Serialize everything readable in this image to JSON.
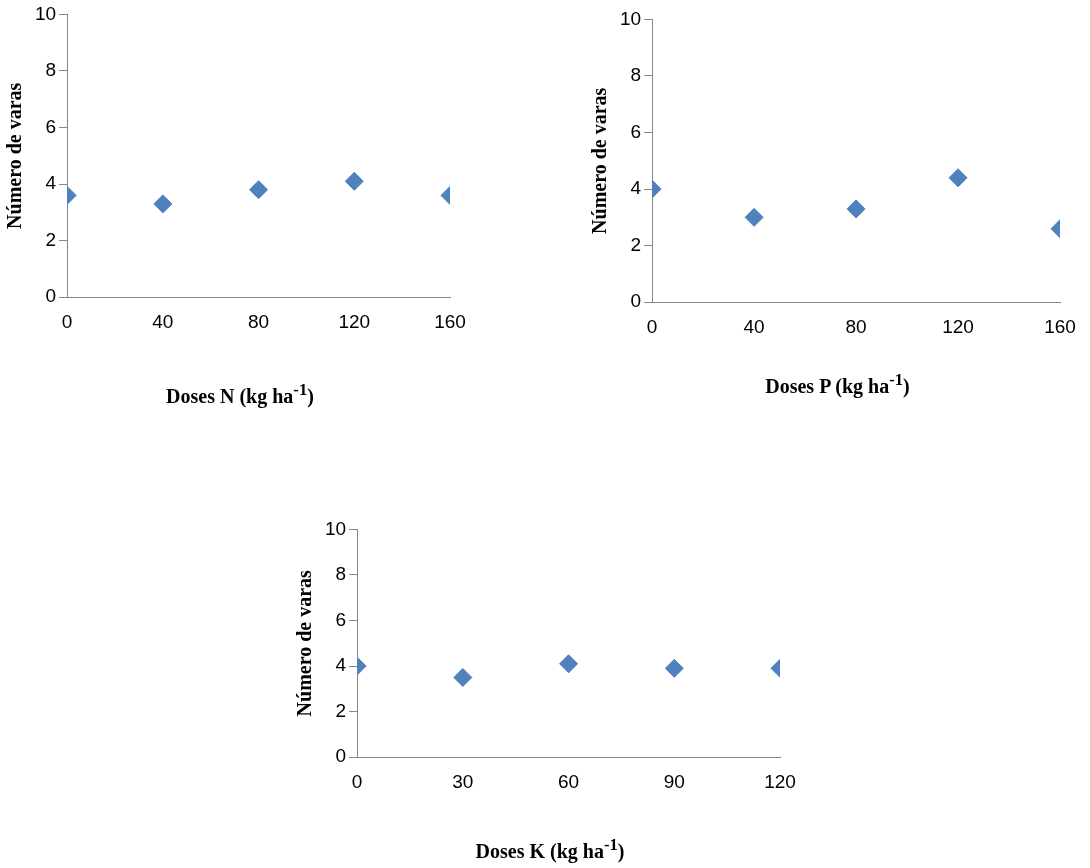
{
  "chart_data": [
    {
      "type": "scatter",
      "xlabel": "Doses N (kg ha$^{-1}$)",
      "ylabel": "Número de varas",
      "x": [
        0,
        40,
        80,
        120,
        160
      ],
      "values": [
        3.6,
        3.3,
        3.8,
        4.1,
        3.6
      ],
      "color": "#4f81bd",
      "marker": "diamond",
      "xlim": [
        0,
        160
      ],
      "xticks": [
        0,
        40,
        80,
        120,
        160
      ],
      "ylim": [
        0,
        10
      ],
      "yticks": [
        0,
        2,
        4,
        6,
        8,
        10
      ]
    },
    {
      "type": "scatter",
      "xlabel": "Doses P (kg ha$^{-1}$)",
      "ylabel": "Número de varas",
      "x": [
        0,
        40,
        80,
        120,
        160
      ],
      "values": [
        4.0,
        3.0,
        3.3,
        4.4,
        2.6
      ],
      "color": "#4f81bd",
      "marker": "diamond",
      "xlim": [
        0,
        160
      ],
      "xticks": [
        0,
        40,
        80,
        120,
        160
      ],
      "ylim": [
        0,
        10
      ],
      "yticks": [
        0,
        2,
        4,
        6,
        8,
        10
      ]
    },
    {
      "type": "scatter",
      "xlabel": "Doses K (kg ha$^{-1}$)",
      "ylabel": "Número de varas",
      "x": [
        0,
        30,
        60,
        90,
        120
      ],
      "values": [
        4.0,
        3.5,
        4.1,
        3.9,
        3.9
      ],
      "color": "#4f81bd",
      "marker": "diamond",
      "xlim": [
        0,
        120
      ],
      "xticks": [
        0,
        30,
        60,
        90,
        120
      ],
      "ylim": [
        0,
        10
      ],
      "yticks": [
        0,
        2,
        4,
        6,
        8,
        10
      ]
    }
  ]
}
